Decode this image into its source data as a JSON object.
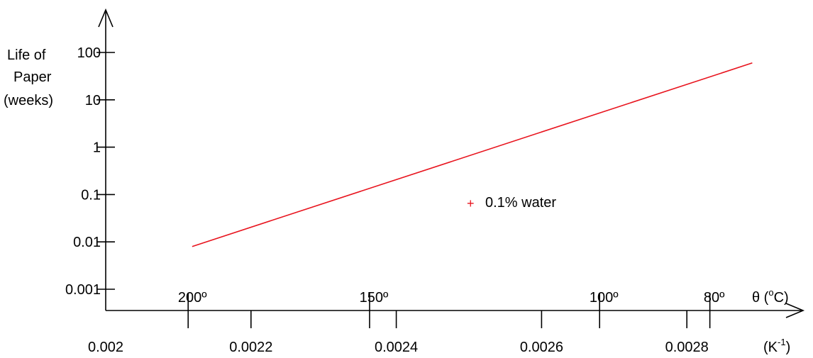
{
  "chart_data": {
    "type": "line",
    "ylabel": [
      "Life of",
      "Paper",
      "(weeks)"
    ],
    "y_scale": "log",
    "y_ticks": [
      {
        "value": 0.001,
        "label": "0.001"
      },
      {
        "value": 0.01,
        "label": "0.01"
      },
      {
        "value": 0.1,
        "label": "0.1"
      },
      {
        "value": 1,
        "label": "1"
      },
      {
        "value": 10,
        "label": "10"
      },
      {
        "value": 100,
        "label": "100"
      }
    ],
    "x_ticks": [
      {
        "value": 0.002,
        "label": "0.002"
      },
      {
        "value": 0.0022,
        "label": "0.0022"
      },
      {
        "value": 0.0024,
        "label": "0.0024"
      },
      {
        "value": 0.0026,
        "label": "0.0026"
      },
      {
        "value": 0.0028,
        "label": "0.0028"
      }
    ],
    "xlabel": {
      "text": "(K",
      "sup": "-1",
      "after": ")"
    },
    "temp_ticks": [
      {
        "celsius": 200,
        "label": "200º"
      },
      {
        "celsius": 150,
        "label": "150º"
      },
      {
        "celsius": 100,
        "label": "100º"
      },
      {
        "celsius": 80,
        "label": "80º"
      }
    ],
    "temp_axis_label": {
      "text": "θ  (",
      "sup": "o",
      "after": "C)"
    },
    "series": [
      {
        "name": "0.1% water",
        "color": "#e8141e",
        "points": [
          {
            "x": 0.002119,
            "y": 0.008
          },
          {
            "x": 0.00289,
            "y": 60
          }
        ]
      }
    ],
    "legend": {
      "marker": "+",
      "label": "0.1% water",
      "placement": "center-right"
    },
    "grid": false
  }
}
